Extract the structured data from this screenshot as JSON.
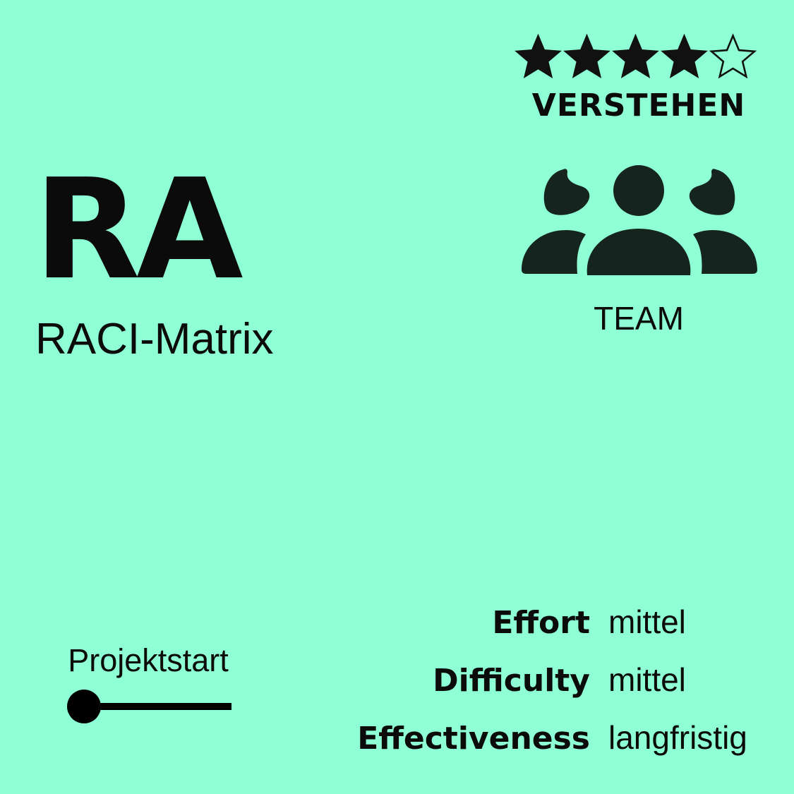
{
  "card": {
    "abbreviation": "RA",
    "name": "RACI-Matrix",
    "rating": {
      "value": 4,
      "max": 5
    },
    "level": "VERSTEHEN",
    "category": {
      "icon": "team-icon",
      "label": "TEAM"
    },
    "phase": {
      "label": "Projektstart"
    },
    "properties": [
      {
        "key": "Effort",
        "value": "mittel"
      },
      {
        "key": "Difficulty",
        "value": "mittel"
      },
      {
        "key": "Effectiveness",
        "value": "langfristig"
      }
    ]
  },
  "colors": {
    "background": "#8fffd6",
    "foreground": "#0b0b0b",
    "icon": "#15241f"
  }
}
